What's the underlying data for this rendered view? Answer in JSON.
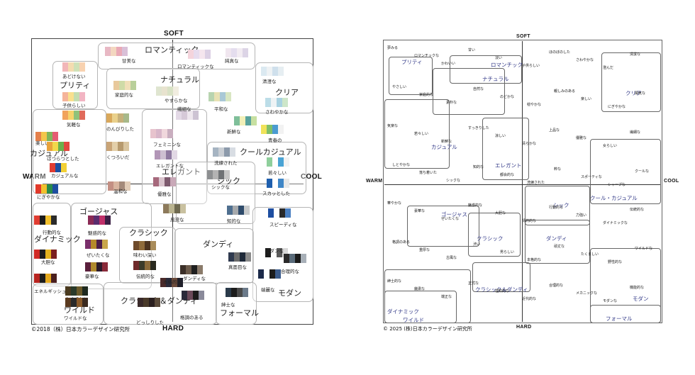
{
  "left": {
    "axes": {
      "top": "SOFT",
      "bottom": "HARD",
      "left": "WARM",
      "right": "COOL"
    },
    "copyright": "©2018（株）日本カラーデザイン研究所",
    "groups": [
      {
        "name": "pretty",
        "label": "プリティ"
      },
      {
        "name": "romantic",
        "label": "ロマンティック"
      },
      {
        "name": "natural",
        "label": "ナチュラル"
      },
      {
        "name": "clear",
        "label": "クリア"
      },
      {
        "name": "casual",
        "label": "カジュアル"
      },
      {
        "name": "elegant",
        "label": "エレガント"
      },
      {
        "name": "cool-casual",
        "label": "クールカジュアル"
      },
      {
        "name": "chic",
        "label": "シック"
      },
      {
        "name": "gorgeous",
        "label": "ゴージャス"
      },
      {
        "name": "classic",
        "label": "クラシック"
      },
      {
        "name": "dandy",
        "label": "ダンディ"
      },
      {
        "name": "dynamic",
        "label": "ダイナミック"
      },
      {
        "name": "modern",
        "label": "モダン"
      },
      {
        "name": "wild",
        "label": "ワイルド"
      },
      {
        "name": "classic-dandy",
        "label": "クラシック＆ダンディ"
      },
      {
        "name": "formal",
        "label": "フォーマル"
      }
    ],
    "images": [
      {
        "text": "甘美な",
        "colors": [
          "#e8b8c4",
          "#f3d7c0",
          "#e9a9b6",
          "#d9c0d8"
        ]
      },
      {
        "text": "ロマンティックな",
        "colors": [
          "#f4d4dc",
          "#e7dcee",
          "#f5e6ee",
          "#dcd0e4"
        ]
      },
      {
        "text": "純真な",
        "colors": [
          "#f0e6ef",
          "#e4ddee",
          "#f2ecf2",
          "#dcd4e6"
        ]
      },
      {
        "text": "あどけない",
        "colors": [
          "#f2b6b8",
          "#f4dcb0",
          "#cfe1b7",
          "#f8d2b0"
        ]
      },
      {
        "text": "子供らしい",
        "colors": [
          "#f5b49a",
          "#f9e08e",
          "#c4ddb0",
          "#f2b5c3"
        ]
      },
      {
        "text": "清澄な",
        "colors": [
          "#dbe9f1",
          "#eef2f4",
          "#cfe0ec",
          "#e6eef2"
        ]
      },
      {
        "text": "さわやかな",
        "colors": [
          "#bcdde8",
          "#eef3f5",
          "#a8d2e1",
          "#cde6c9"
        ]
      },
      {
        "text": "家庭的な",
        "colors": [
          "#e8c99c",
          "#cfdba7",
          "#f0dfb8",
          "#b9cf9a"
        ]
      },
      {
        "text": "やすらかな",
        "colors": [
          "#dfe5d0",
          "#e8e3cf",
          "#d9e2c6",
          "#f1ede0"
        ]
      },
      {
        "text": "平和な",
        "colors": [
          "#b8d4b0",
          "#e8e1b4",
          "#a9c8d6",
          "#d8e6c2"
        ]
      },
      {
        "text": "新鮮な",
        "colors": [
          "#7fbf9a",
          "#f2f0b8",
          "#5aa39d",
          "#c7e0a1"
        ]
      },
      {
        "text": "繊細な",
        "colors": [
          "#e3d9e6",
          "#d6c9d8",
          "#eee7ee",
          "#cdc3d3"
        ]
      },
      {
        "text": "気軽な",
        "colors": [
          "#f1a35c",
          "#f6d36b",
          "#8fc27a",
          "#e06a5a"
        ]
      },
      {
        "text": "楽しい",
        "colors": [
          "#e5804b",
          "#f3c64b",
          "#7fb55b",
          "#e55c72"
        ]
      },
      {
        "text": "はつらつとした",
        "colors": [
          "#e9a23b",
          "#f2d84a",
          "#6ab04c",
          "#e1483f"
        ]
      },
      {
        "text": "のんびりした",
        "colors": [
          "#d9a85b",
          "#e9d08b",
          "#c6b07a",
          "#a7b98a"
        ]
      },
      {
        "text": "フェミニンな",
        "colors": [
          "#e7c3cd",
          "#d8b6c9",
          "#f0d7dc",
          "#c9aebf"
        ]
      },
      {
        "text": "青春の",
        "colors": [
          "#f0e25a",
          "#7fbf6a",
          "#4a9bd1",
          "#f2f2f2"
        ]
      },
      {
        "text": "くつろいだ",
        "colors": [
          "#c9a477",
          "#e3cfa9",
          "#b79a6e",
          "#d9c5a0"
        ]
      },
      {
        "text": "エレガントな",
        "colors": [
          "#b296b7",
          "#cdbfd1",
          "#8f7aa0",
          "#e2d8e5"
        ]
      },
      {
        "text": "洗練された",
        "colors": [
          "#a6b4c2",
          "#c9ced4",
          "#8c9aab",
          "#d8dde3"
        ]
      },
      {
        "text": "若々しい",
        "colors": [
          "#8fcf9c",
          "#ffffff",
          "#4aa3d4",
          "#f2f2f2"
        ]
      },
      {
        "text": "カジュアルな",
        "colors": [
          "#e03c31",
          "#1c4fa1",
          "#f2d036"
        ]
      },
      {
        "text": "温和な",
        "colors": [
          "#c38f83",
          "#d9b5a0",
          "#a48a7a",
          "#e2cdb8"
        ]
      },
      {
        "text": "優雅な",
        "colors": [
          "#a6697c",
          "#d9c4cd",
          "#7d5a6e",
          "#c9a9b8"
        ]
      },
      {
        "text": "シックな",
        "colors": [
          "#8d8f91",
          "#b3b3b3",
          "#6f7275",
          "#c6c6c6"
        ]
      },
      {
        "text": "スカッとした",
        "colors": [
          "#1f5fae",
          "#ffffff",
          "#3f86c6",
          "#e8e8e8"
        ]
      },
      {
        "text": "にぎやかな",
        "colors": [
          "#e23a2b",
          "#f2c12e",
          "#2a8c4a",
          "#1e4ea1"
        ]
      },
      {
        "text": "風流な",
        "colors": [
          "#8d7a5b",
          "#b9b38f",
          "#6f6a50",
          "#c9c1a0"
        ]
      },
      {
        "text": "知的な",
        "colors": [
          "#4f6f8f",
          "#a6a9ac",
          "#2f4b6b",
          "#c9cbcc"
        ]
      },
      {
        "text": "スピーディな",
        "colors": [
          "#1e4ea1",
          "#ffffff",
          "#2a2a2a",
          "#4a7fc1"
        ]
      },
      {
        "text": "行動的な",
        "colors": [
          "#e03c31",
          "#1c1c1c",
          "#f2c12e",
          "#2b2b2b"
        ]
      },
      {
        "text": "魅惑的な",
        "colors": [
          "#8a2a55",
          "#5a2d6e",
          "#c0306a",
          "#3b1f44"
        ]
      },
      {
        "text": "ぜいたくな",
        "colors": [
          "#7a2f6b",
          "#b58a2a",
          "#4e1f4a",
          "#c9a64b"
        ]
      },
      {
        "text": "味わい深い",
        "colors": [
          "#6e4a2a",
          "#8f6b3b",
          "#4d3420",
          "#a98c5a"
        ]
      },
      {
        "text": "モダンな",
        "colors": [
          "#1c1c1c",
          "#ffffff",
          "#5a5a5a",
          "#d9d9d9"
        ]
      },
      {
        "text": "大胆な",
        "colors": [
          "#d02a26",
          "#1c1c1c",
          "#e3b21e",
          "#7a1f1f"
        ]
      },
      {
        "text": "豪華な",
        "colors": [
          "#5a1f3b",
          "#b08a2e",
          "#2b1b2b",
          "#8a2a3a"
        ]
      },
      {
        "text": "伝統的な",
        "colors": [
          "#6f2a2a",
          "#3b3b2a",
          "#8a6a3a",
          "#2a2a1f"
        ]
      },
      {
        "text": "真面目な",
        "colors": [
          "#2f3a4f",
          "#6b6b6b",
          "#1f2a3a",
          "#8a8a8a"
        ]
      },
      {
        "text": "ダンディな",
        "colors": [
          "#3b2f28",
          "#6b5a4a",
          "#1f1f1f",
          "#8a7a6a"
        ]
      },
      {
        "text": "合理的な",
        "colors": [
          "#2a2a2a",
          "#5a6b7a",
          "#1c1c1c",
          "#a8b0b8"
        ]
      },
      {
        "text": "エネルギッシュな",
        "colors": [
          "#b8241f",
          "#1c1c1c",
          "#e3a81e",
          "#4a1f1f"
        ]
      },
      {
        "text": "本格的な",
        "colors": [
          "#4a2a2a",
          "#2a2a3a",
          "#6b4a3a",
          "#1f1f2a"
        ]
      },
      {
        "text": "たくましい",
        "colors": [
          "#4a3a1f",
          "#2a3a2a",
          "#6b5a2a",
          "#1f2a1f"
        ]
      },
      {
        "text": "ワイルドな",
        "colors": [
          "#5a3a1f",
          "#2a2a2a",
          "#8a5a2a",
          "#3a2a1f"
        ]
      },
      {
        "text": "どっしりした",
        "colors": [
          "#3a2a2a",
          "#4a3a2a",
          "#2a1f1f",
          "#5a4a3a"
        ]
      },
      {
        "text": "紳士な",
        "colors": [
          "#2a3a4a",
          "#1c1c1c",
          "#4a4a4a",
          "#6b7a8a"
        ]
      },
      {
        "text": "格調のある",
        "colors": [
          "#2a2a3a",
          "#6b4a5a",
          "#1c1c1c",
          "#8a8a9a"
        ]
      },
      {
        "text": "端麗な",
        "colors": [
          "#1c2a4a",
          "#ffffff",
          "#1c1c1c",
          "#3a5a8a"
        ]
      }
    ]
  },
  "right": {
    "axes": {
      "top": "SOFT",
      "bottom": "HARD",
      "left": "WARM",
      "right": "COOL"
    },
    "copyright": "© 2025 (株)日本カラーデザイン研究所",
    "groups": [
      {
        "name": "pretty",
        "label": "プリティ"
      },
      {
        "name": "romantic",
        "label": "ロマンチック"
      },
      {
        "name": "natural",
        "label": "ナチュラル"
      },
      {
        "name": "clear",
        "label": "クリア"
      },
      {
        "name": "casual",
        "label": "カジュアル"
      },
      {
        "name": "elegant",
        "label": "エレガント"
      },
      {
        "name": "cool-casual",
        "label": "クール・カジュアル"
      },
      {
        "name": "chic",
        "label": "シック"
      },
      {
        "name": "gorgeous",
        "label": "ゴージャス"
      },
      {
        "name": "classic",
        "label": "クラシック"
      },
      {
        "name": "dandy",
        "label": "ダンディ"
      },
      {
        "name": "dynamic",
        "label": "ダイナミック"
      },
      {
        "name": "modern",
        "label": "モダン"
      },
      {
        "name": "wild",
        "label": "ワイルド"
      },
      {
        "name": "classic-dandy",
        "label": "クラシック＆ダンディ"
      },
      {
        "name": "formal",
        "label": "フォーマル"
      }
    ],
    "words": [
      "夢みる",
      "ロマンチックな",
      "かわいい",
      "甘い",
      "淡い",
      "子供らしい",
      "ほのぼのした",
      "さわやかな",
      "澄んだ",
      "清潔な",
      "やさしい",
      "家庭的な",
      "素朴な",
      "自然な",
      "のどかな",
      "穏やかな",
      "親しみのある",
      "楽しい",
      "にぎやかな",
      "陽気な",
      "気楽な",
      "若々しい",
      "新鮮な",
      "すっきりした",
      "涼しい",
      "清らかな",
      "上品な",
      "優雅な",
      "女らしい",
      "繊細な",
      "しとやかな",
      "落ち着いた",
      "シックな",
      "知的な",
      "都会的な",
      "洗練された",
      "粋な",
      "スポーティな",
      "シャープな",
      "クールな",
      "華やかな",
      "豪華な",
      "ぜいたくな",
      "魅惑的な",
      "大胆な",
      "情熱的な",
      "行動的な",
      "力強い",
      "ダイナミックな",
      "伝統的な",
      "格調のある",
      "重厚な",
      "古風な",
      "渋い",
      "男らしい",
      "本格的な",
      "頑丈な",
      "たくましい",
      "野性的な",
      "ワイルドな",
      "紳士的な",
      "厳粛な",
      "端正な",
      "正式な",
      "理知的な",
      "近代的な",
      "合理的な",
      "メカニックな",
      "モダンな",
      "機能的な"
    ]
  }
}
